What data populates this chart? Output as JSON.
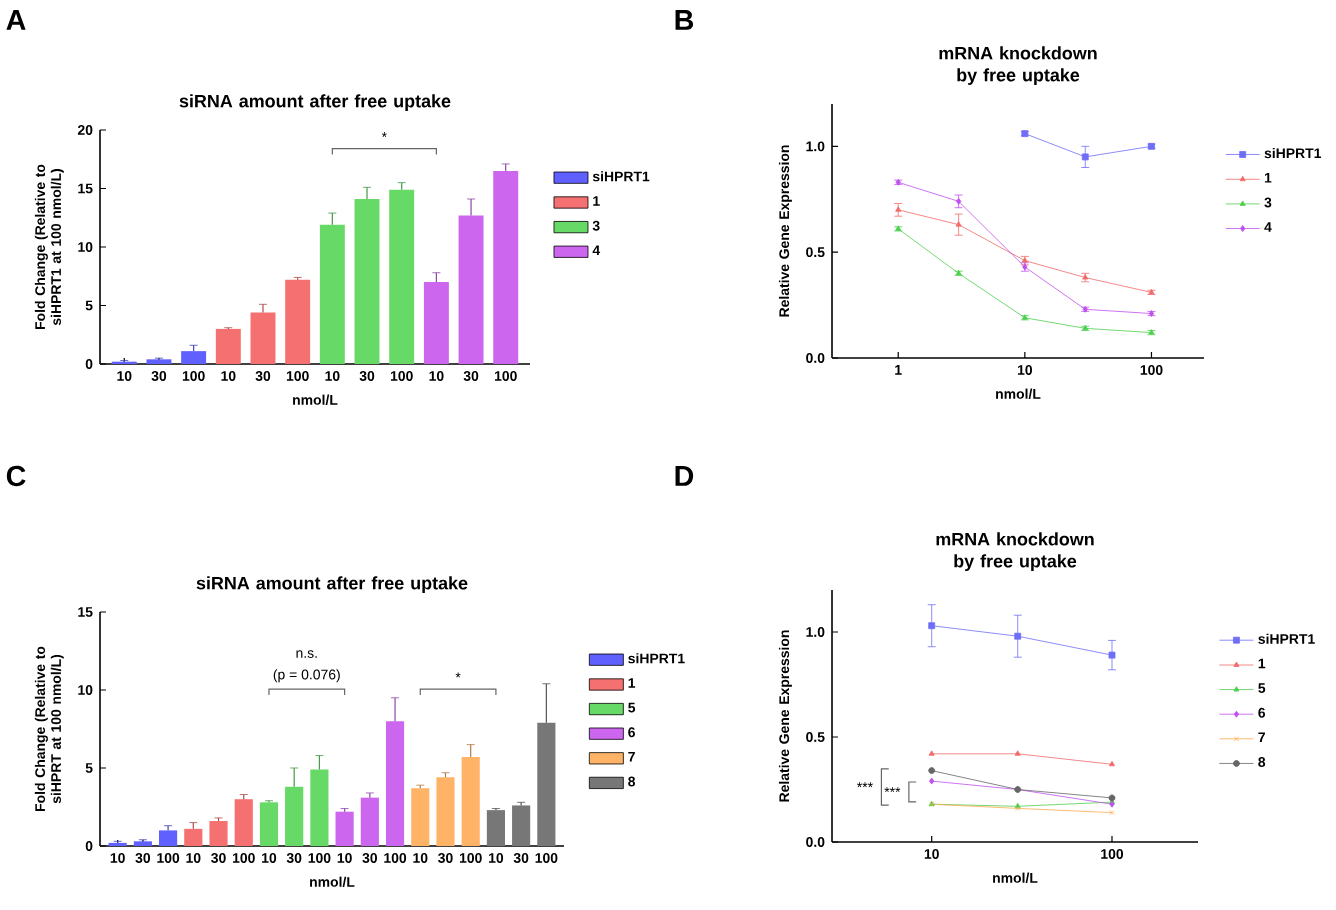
{
  "chart_data": [
    {
      "type": "bar",
      "title": "siRNA amount after free uptake",
      "xlabel": "nmol/L",
      "ylabel": "Fold Change (Relative to siHPRT1 at 100 nmol/L)",
      "categories": [
        "10",
        "30",
        "100",
        "10",
        "30",
        "100",
        "10",
        "30",
        "100",
        "10",
        "30",
        "100"
      ],
      "ylim": [
        0,
        20
      ],
      "yticks": [
        0,
        5,
        10,
        15,
        20
      ],
      "legend": "right",
      "annotations": [
        "A",
        "*"
      ],
      "series": [
        {
          "name": "siHPRT1",
          "color": "#6060ff",
          "values": [
            0.2,
            0.4,
            1.1,
            null,
            null,
            null,
            null,
            null,
            null,
            null,
            null,
            null
          ],
          "errors": [
            0.1,
            0.1,
            0.5,
            null,
            null,
            null,
            null,
            null,
            null,
            null,
            null,
            null
          ]
        },
        {
          "name": "1",
          "color": "#f57070",
          "values": [
            null,
            null,
            null,
            3.0,
            4.4,
            7.2,
            null,
            null,
            null,
            null,
            null,
            null
          ],
          "errors": [
            null,
            null,
            null,
            0.1,
            0.7,
            0.2,
            null,
            null,
            null,
            null,
            null,
            null
          ]
        },
        {
          "name": "3",
          "color": "#66d966",
          "values": [
            null,
            null,
            null,
            null,
            null,
            null,
            11.9,
            14.1,
            14.9,
            null,
            null,
            null
          ],
          "errors": [
            null,
            null,
            null,
            null,
            null,
            null,
            1.0,
            1.0,
            0.6,
            null,
            null,
            null
          ]
        },
        {
          "name": "4",
          "color": "#cc66ee",
          "values": [
            null,
            null,
            null,
            null,
            null,
            null,
            null,
            null,
            null,
            7.0,
            12.7,
            16.5
          ],
          "errors": [
            null,
            null,
            null,
            null,
            null,
            null,
            null,
            null,
            null,
            0.8,
            1.4,
            0.6
          ]
        }
      ]
    },
    {
      "type": "line",
      "title": "mRNA knockdown by free uptake",
      "xlabel": "nmol/L",
      "ylabel": "Relative Gene Expression",
      "x": [
        1,
        3,
        10,
        30,
        100
      ],
      "log": "x",
      "xlim": [
        0.3,
        260
      ],
      "xticks": [
        1,
        10,
        100
      ],
      "ylim": [
        0,
        1.2
      ],
      "yticks": [
        {
          "value": 0,
          "label": "0.0"
        },
        {
          "value": 0.5,
          "label": "0.5"
        },
        {
          "value": 1.0,
          "label": "1.0"
        }
      ],
      "legend": "right",
      "annotations": [
        "B"
      ],
      "series": [
        {
          "name": "siHPRT1",
          "color": "#6e6ef7",
          "marker": "square",
          "values": [
            null,
            null,
            1.06,
            0.95,
            1.0
          ],
          "errors": [
            null,
            null,
            0.01,
            0.05,
            0.01
          ]
        },
        {
          "name": "1",
          "color": "#f26b6b",
          "marker": "triangle",
          "values": [
            0.7,
            0.63,
            0.46,
            0.38,
            0.31
          ],
          "errors": [
            0.03,
            0.05,
            0.02,
            0.02,
            0.01
          ]
        },
        {
          "name": "3",
          "color": "#4fcf4f",
          "marker": "triangle",
          "values": [
            0.61,
            0.4,
            0.19,
            0.14,
            0.12
          ],
          "errors": [
            0.01,
            0.01,
            0.01,
            0.01,
            0.01
          ]
        },
        {
          "name": "4",
          "color": "#c050f0",
          "marker": "diamond",
          "values": [
            0.83,
            0.74,
            0.43,
            0.23,
            0.21
          ],
          "errors": [
            0.01,
            0.03,
            0.02,
            0.01,
            0.01
          ]
        }
      ]
    },
    {
      "type": "bar",
      "title": "siRNA amount after free uptake",
      "xlabel": "nmol/L",
      "ylabel": "Fold Change (Relative to siHPRT at 100 nmol/L)",
      "categories": [
        "10",
        "30",
        "100",
        "10",
        "30",
        "100",
        "10",
        "30",
        "100",
        "10",
        "30",
        "100",
        "10",
        "30",
        "100",
        "10",
        "30",
        "100"
      ],
      "ylim": [
        0,
        15
      ],
      "yticks": [
        0,
        5,
        10,
        15
      ],
      "legend": "right",
      "annotations": [
        "C",
        "n.s.",
        "(p = 0.076)",
        "*"
      ],
      "series": [
        {
          "name": "siHPRT1",
          "color": "#6060ff",
          "values": [
            0.2,
            0.3,
            1.0,
            null,
            null,
            null,
            null,
            null,
            null,
            null,
            null,
            null,
            null,
            null,
            null,
            null,
            null,
            null
          ],
          "errors": [
            0.1,
            0.1,
            0.3,
            null,
            null,
            null,
            null,
            null,
            null,
            null,
            null,
            null,
            null,
            null,
            null,
            null,
            null,
            null
          ]
        },
        {
          "name": "1",
          "color": "#f57070",
          "values": [
            null,
            null,
            null,
            1.1,
            1.6,
            3.0,
            null,
            null,
            null,
            null,
            null,
            null,
            null,
            null,
            null,
            null,
            null,
            null
          ],
          "errors": [
            null,
            null,
            null,
            0.4,
            0.2,
            0.3,
            null,
            null,
            null,
            null,
            null,
            null,
            null,
            null,
            null,
            null,
            null,
            null
          ]
        },
        {
          "name": "5",
          "color": "#66d966",
          "values": [
            null,
            null,
            null,
            null,
            null,
            null,
            2.8,
            3.8,
            4.9,
            null,
            null,
            null,
            null,
            null,
            null,
            null,
            null,
            null
          ],
          "errors": [
            null,
            null,
            null,
            null,
            null,
            null,
            0.1,
            1.2,
            0.9,
            null,
            null,
            null,
            null,
            null,
            null,
            null,
            null,
            null
          ]
        },
        {
          "name": "6",
          "color": "#cc66ee",
          "values": [
            null,
            null,
            null,
            null,
            null,
            null,
            null,
            null,
            null,
            2.2,
            3.1,
            8.0,
            null,
            null,
            null,
            null,
            null,
            null
          ],
          "errors": [
            null,
            null,
            null,
            null,
            null,
            null,
            null,
            null,
            null,
            0.2,
            0.3,
            1.5,
            null,
            null,
            null,
            null,
            null,
            null
          ]
        },
        {
          "name": "7",
          "color": "#ffb366",
          "values": [
            null,
            null,
            null,
            null,
            null,
            null,
            null,
            null,
            null,
            null,
            null,
            null,
            3.7,
            4.4,
            5.7,
            null,
            null,
            null
          ],
          "errors": [
            null,
            null,
            null,
            null,
            null,
            null,
            null,
            null,
            null,
            null,
            null,
            null,
            0.2,
            0.3,
            0.8,
            null,
            null,
            null
          ]
        },
        {
          "name": "8",
          "color": "#777777",
          "values": [
            null,
            null,
            null,
            null,
            null,
            null,
            null,
            null,
            null,
            null,
            null,
            null,
            null,
            null,
            null,
            2.3,
            2.6,
            7.9
          ],
          "errors": [
            null,
            null,
            null,
            null,
            null,
            null,
            null,
            null,
            null,
            null,
            null,
            null,
            null,
            null,
            null,
            0.1,
            0.2,
            2.5
          ]
        }
      ]
    },
    {
      "type": "line",
      "title": "mRNA knockdown by free uptake",
      "xlabel": "nmol/L",
      "ylabel": "Relative Gene Expression",
      "x": [
        10,
        30,
        100
      ],
      "log": "x",
      "xlim": [
        2.8,
        300
      ],
      "xticks": [
        10,
        100
      ],
      "ylim": [
        0,
        1.2
      ],
      "yticks": [
        {
          "value": 0,
          "label": "0.0"
        },
        {
          "value": 0.5,
          "label": "0.5"
        },
        {
          "value": 1.0,
          "label": "1.0"
        }
      ],
      "legend": "right",
      "annotations": [
        "D",
        "***",
        "***"
      ],
      "series": [
        {
          "name": "siHPRT1",
          "color": "#6e6ef7",
          "marker": "square",
          "values": [
            1.03,
            0.98,
            0.89
          ],
          "errors": [
            0.1,
            0.1,
            0.07
          ]
        },
        {
          "name": "1",
          "color": "#f26b6b",
          "marker": "triangle",
          "values": [
            0.42,
            0.42,
            0.37
          ]
        },
        {
          "name": "5",
          "color": "#4fcf4f",
          "marker": "triangle",
          "values": [
            0.18,
            0.17,
            0.19
          ]
        },
        {
          "name": "6",
          "color": "#c050f0",
          "marker": "diamond",
          "values": [
            0.29,
            0.25,
            0.18
          ]
        },
        {
          "name": "7",
          "color": "#ffa94d",
          "marker": "cross",
          "values": [
            0.18,
            0.16,
            0.14
          ]
        },
        {
          "name": "8",
          "color": "#666666",
          "marker": "circle",
          "values": [
            0.34,
            0.25,
            0.21
          ]
        }
      ]
    }
  ]
}
